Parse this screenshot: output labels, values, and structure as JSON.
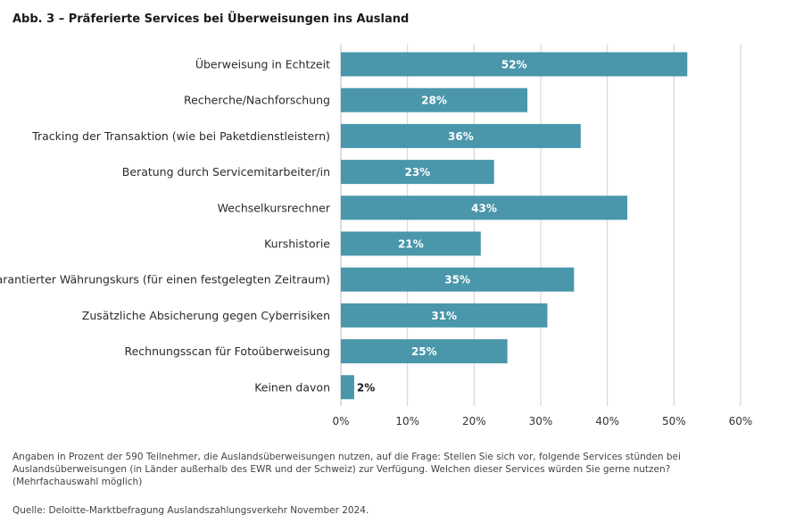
{
  "title": "Abb. 3 – Präferierte Services bei Überweisungen ins Ausland",
  "note": "Angaben in Prozent der 590 Teilnehmer, die Auslandsüberweisungen nutzen, auf die Frage: Stellen Sie sich vor, folgende Services stünden bei Auslandsüberweisungen (in Länder außerhalb des EWR und der Schweiz) zur Verfügung. Welchen dieser Services würden Sie gerne nutzen? (Mehrfachauswahl möglich)",
  "source": "Quelle: Deloitte-Marktbefragung Auslandszahlungsverkehr November 2024.",
  "colors": {
    "bar": "#4a97ab",
    "bar_label_inside": "#ffffff",
    "bar_label_outside": "#1a1a1a",
    "grid": "#d0d0d0"
  },
  "chart_data": {
    "type": "bar",
    "orientation": "horizontal",
    "categories": [
      "Überweisung in Echtzeit",
      "Recherche/Nachforschung",
      "Tracking der Transaktion (wie bei Paketdienstleistern)",
      "Beratung durch Servicemitarbeiter/in",
      "Wechselkursrechner",
      "Kurshistorie",
      "Garantierter Währungskurs (für einen festgelegten Zeitraum)",
      "Zusätzliche Absicherung gegen Cyberrisiken",
      "Rechnungsscan für Fotoüberweisung",
      "Keinen davon"
    ],
    "values": [
      52,
      28,
      36,
      23,
      43,
      21,
      35,
      31,
      25,
      2
    ],
    "data_labels": [
      "52%",
      "28%",
      "36%",
      "23%",
      "43%",
      "21%",
      "35%",
      "31%",
      "25%",
      "2%"
    ],
    "xlim": [
      0,
      60
    ],
    "xticks": [
      0,
      10,
      20,
      30,
      40,
      50,
      60
    ],
    "xtick_labels": [
      "0%",
      "10%",
      "20%",
      "30%",
      "40%",
      "50%",
      "60%"
    ],
    "grid": true
  }
}
